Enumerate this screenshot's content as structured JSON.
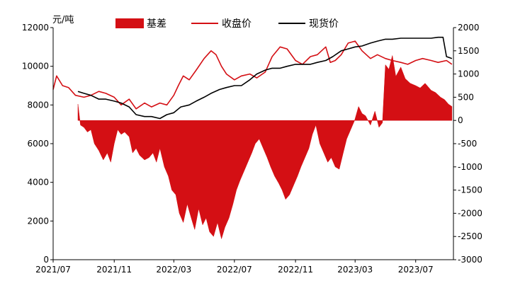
{
  "chart_data": {
    "type": "line",
    "title": "",
    "left_unit": "元/吨",
    "xlabel": "",
    "ylabel": "",
    "y_left": {
      "min": 0,
      "max": 12000,
      "ticks": [
        0,
        2000,
        4000,
        6000,
        8000,
        10000,
        12000
      ]
    },
    "y_right": {
      "min": -3000,
      "max": 2000,
      "ticks": [
        -3000,
        -2500,
        -2000,
        -1500,
        -1000,
        -500,
        0,
        500,
        1000,
        1500,
        2000
      ]
    },
    "x_range": [
      "2021-07-01",
      "2023-09-15"
    ],
    "x_ticks": [
      "2021/07",
      "2021/11",
      "2022/03",
      "2022/07",
      "2022/11",
      "2023/03",
      "2023/07"
    ],
    "legend_position": "top",
    "colors": {
      "basis": "#d40f14",
      "close": "#d40f14",
      "spot": "#000000"
    },
    "series": [
      {
        "name": "基差",
        "kind": "area",
        "axis": "right",
        "x": [
          "2021-08-20",
          "2021-08-25",
          "2021-09-01",
          "2021-09-08",
          "2021-09-15",
          "2021-09-22",
          "2021-10-01",
          "2021-10-10",
          "2021-10-18",
          "2021-10-25",
          "2021-11-01",
          "2021-11-08",
          "2021-11-15",
          "2021-11-22",
          "2021-12-01",
          "2021-12-08",
          "2021-12-15",
          "2021-12-22",
          "2022-01-01",
          "2022-01-10",
          "2022-01-18",
          "2022-01-25",
          "2022-02-01",
          "2022-02-10",
          "2022-02-18",
          "2022-02-25",
          "2022-03-05",
          "2022-03-12",
          "2022-03-20",
          "2022-03-28",
          "2022-04-05",
          "2022-04-12",
          "2022-04-20",
          "2022-04-28",
          "2022-05-05",
          "2022-05-12",
          "2022-05-20",
          "2022-05-28",
          "2022-06-05",
          "2022-06-12",
          "2022-06-20",
          "2022-06-28",
          "2022-07-05",
          "2022-07-12",
          "2022-07-20",
          "2022-07-28",
          "2022-08-05",
          "2022-08-12",
          "2022-08-20",
          "2022-08-28",
          "2022-09-05",
          "2022-09-12",
          "2022-09-20",
          "2022-09-28",
          "2022-10-05",
          "2022-10-12",
          "2022-10-20",
          "2022-10-28",
          "2022-11-05",
          "2022-11-12",
          "2022-11-20",
          "2022-11-28",
          "2022-12-05",
          "2022-12-12",
          "2022-12-20",
          "2022-12-28",
          "2023-01-05",
          "2023-01-12",
          "2023-01-20",
          "2023-01-28",
          "2023-02-05",
          "2023-02-12",
          "2023-02-20",
          "2023-02-28",
          "2023-03-08",
          "2023-03-15",
          "2023-03-22",
          "2023-04-01",
          "2023-04-10",
          "2023-04-18",
          "2023-04-25",
          "2023-05-01",
          "2023-05-08",
          "2023-05-15",
          "2023-05-22",
          "2023-06-01",
          "2023-06-10",
          "2023-06-20",
          "2023-07-01",
          "2023-07-10",
          "2023-07-20",
          "2023-08-01",
          "2023-08-10",
          "2023-08-20",
          "2023-08-28",
          "2023-09-05",
          "2023-09-12"
        ],
        "values": [
          350,
          -100,
          -150,
          -250,
          -200,
          -500,
          -650,
          -850,
          -700,
          -900,
          -500,
          -200,
          -300,
          -250,
          -350,
          -700,
          -600,
          -750,
          -850,
          -800,
          -700,
          -900,
          -600,
          -1000,
          -1200,
          -1500,
          -1600,
          -2000,
          -2200,
          -1800,
          -2100,
          -2350,
          -1900,
          -2250,
          -2100,
          -2400,
          -2500,
          -2200,
          -2550,
          -2300,
          -2100,
          -1800,
          -1500,
          -1300,
          -1100,
          -900,
          -700,
          -500,
          -400,
          -600,
          -800,
          -1000,
          -1200,
          -1350,
          -1500,
          -1700,
          -1600,
          -1400,
          -1200,
          -1000,
          -800,
          -600,
          -300,
          -100,
          -500,
          -700,
          -900,
          -800,
          -1000,
          -1050,
          -700,
          -400,
          -200,
          0,
          300,
          150,
          100,
          -100,
          200,
          -150,
          -50,
          1200,
          1100,
          1400,
          950,
          1150,
          900,
          800,
          750,
          700,
          800,
          650,
          600,
          500,
          450,
          350,
          300
        ]
      },
      {
        "name": "收盘价",
        "kind": "line",
        "axis": "left",
        "x": [
          "2021-07-01",
          "2021-07-08",
          "2021-07-20",
          "2021-08-01",
          "2021-08-15",
          "2021-09-01",
          "2021-09-15",
          "2021-10-01",
          "2021-10-15",
          "2021-11-01",
          "2021-11-15",
          "2021-12-01",
          "2021-12-15",
          "2022-01-01",
          "2022-01-15",
          "2022-02-01",
          "2022-02-15",
          "2022-03-01",
          "2022-03-10",
          "2022-03-20",
          "2022-04-01",
          "2022-04-15",
          "2022-05-01",
          "2022-05-15",
          "2022-05-25",
          "2022-06-05",
          "2022-06-15",
          "2022-07-01",
          "2022-07-15",
          "2022-08-01",
          "2022-08-15",
          "2022-09-01",
          "2022-09-15",
          "2022-10-01",
          "2022-10-15",
          "2022-11-01",
          "2022-11-15",
          "2022-12-01",
          "2022-12-15",
          "2023-01-01",
          "2023-01-10",
          "2023-01-20",
          "2023-02-01",
          "2023-02-15",
          "2023-03-01",
          "2023-03-15",
          "2023-04-01",
          "2023-04-15",
          "2023-05-01",
          "2023-05-15",
          "2023-06-01",
          "2023-06-15",
          "2023-07-01",
          "2023-07-15",
          "2023-08-01",
          "2023-08-15",
          "2023-09-01",
          "2023-09-12"
        ],
        "values": [
          8800,
          9500,
          9000,
          8900,
          8500,
          8400,
          8500,
          8700,
          8600,
          8400,
          8000,
          8300,
          7800,
          8100,
          7900,
          8100,
          8000,
          8500,
          9000,
          9500,
          9300,
          9800,
          10400,
          10800,
          10600,
          10000,
          9600,
          9300,
          9500,
          9600,
          9400,
          9700,
          10500,
          11000,
          10900,
          10300,
          10100,
          10500,
          10600,
          11000,
          10200,
          10300,
          10600,
          11200,
          11300,
          10800,
          10400,
          10600,
          10400,
          10300,
          10200,
          10100,
          10300,
          10400,
          10300,
          10200,
          10300,
          10100
        ]
      },
      {
        "name": "现货价",
        "kind": "line",
        "axis": "left",
        "x": [
          "2021-08-20",
          "2021-09-01",
          "2021-09-15",
          "2021-10-01",
          "2021-10-15",
          "2021-11-01",
          "2021-11-15",
          "2021-12-01",
          "2021-12-15",
          "2022-01-01",
          "2022-01-15",
          "2022-02-01",
          "2022-02-15",
          "2022-03-01",
          "2022-03-15",
          "2022-04-01",
          "2022-04-15",
          "2022-05-01",
          "2022-05-15",
          "2022-06-01",
          "2022-06-15",
          "2022-07-01",
          "2022-07-15",
          "2022-08-01",
          "2022-08-15",
          "2022-09-01",
          "2022-09-15",
          "2022-10-01",
          "2022-10-15",
          "2022-11-01",
          "2022-11-15",
          "2022-12-01",
          "2022-12-15",
          "2023-01-01",
          "2023-01-15",
          "2023-02-01",
          "2023-02-15",
          "2023-03-01",
          "2023-03-15",
          "2023-04-01",
          "2023-04-15",
          "2023-05-01",
          "2023-05-15",
          "2023-06-01",
          "2023-06-15",
          "2023-07-01",
          "2023-07-15",
          "2023-08-01",
          "2023-08-15",
          "2023-08-25",
          "2023-09-01",
          "2023-09-12"
        ],
        "values": [
          8700,
          8600,
          8500,
          8300,
          8300,
          8200,
          8100,
          7900,
          7500,
          7400,
          7400,
          7300,
          7500,
          7600,
          7900,
          8000,
          8200,
          8400,
          8600,
          8800,
          8900,
          9000,
          9000,
          9300,
          9600,
          9800,
          9900,
          9900,
          10000,
          10100,
          10100,
          10100,
          10200,
          10300,
          10500,
          10800,
          10900,
          11000,
          11050,
          11200,
          11300,
          11400,
          11400,
          11450,
          11450,
          11450,
          11450,
          11450,
          11500,
          11500,
          10500,
          10400
        ]
      }
    ]
  }
}
